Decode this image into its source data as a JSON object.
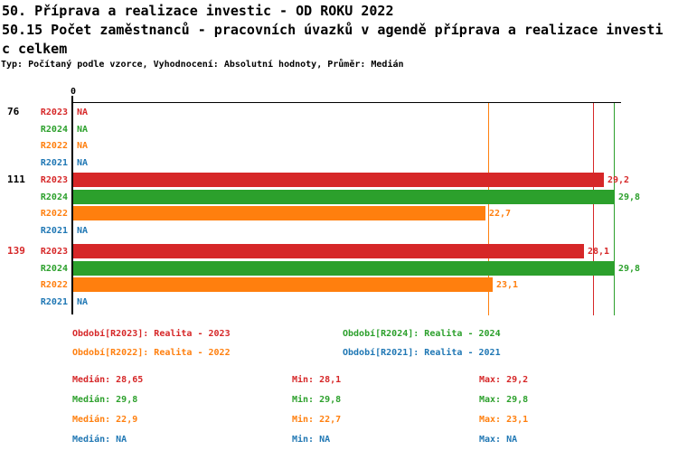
{
  "header": {
    "title_lines": [
      "50. Příprava a realizace investic - OD ROKU 2022",
      "50.15 Počet zaměstnanců - pracovních úvazků v agendě příprava a realizace investi",
      "c celkem"
    ],
    "subtitle": "Typ: Počítaný podle vzorce, Vyhodnocení: Absolutní hodnoty, Průměr: Medián"
  },
  "colors": {
    "R2023": "#d62728",
    "R2024": "#2ca02c",
    "R2022": "#ff7f0e",
    "R2021": "#1f77b4",
    "axis": "#000000",
    "highlight_group": "#d62728"
  },
  "chart_data": {
    "type": "bar",
    "orientation": "horizontal",
    "origin_tick_label": "0",
    "na_label": "NA",
    "xlim": [
      0,
      30.1
    ],
    "grid": false,
    "series_order": [
      "R2023",
      "R2024",
      "R2022",
      "R2021"
    ],
    "groups": [
      {
        "label": "76",
        "label_color": "#000000",
        "rows": [
          {
            "series": "R2023",
            "value": null,
            "display": "NA"
          },
          {
            "series": "R2024",
            "value": null,
            "display": "NA"
          },
          {
            "series": "R2022",
            "value": null,
            "display": "NA"
          },
          {
            "series": "R2021",
            "value": null,
            "display": "NA"
          }
        ]
      },
      {
        "label": "111",
        "label_color": "#000000",
        "rows": [
          {
            "series": "R2023",
            "value": 29.2,
            "display": "29,2"
          },
          {
            "series": "R2024",
            "value": 29.8,
            "display": "29,8"
          },
          {
            "series": "R2022",
            "value": 22.7,
            "display": "22,7"
          },
          {
            "series": "R2021",
            "value": null,
            "display": "NA"
          }
        ]
      },
      {
        "label": "139",
        "label_color": "#d62728",
        "rows": [
          {
            "series": "R2023",
            "value": 28.1,
            "display": "28,1"
          },
          {
            "series": "R2024",
            "value": 29.8,
            "display": "29,8"
          },
          {
            "series": "R2022",
            "value": 23.1,
            "display": "23,1"
          },
          {
            "series": "R2021",
            "value": null,
            "display": "NA"
          }
        ]
      }
    ],
    "median_lines": [
      {
        "series": "R2022",
        "value": 22.9
      },
      {
        "series": "R2023",
        "value": 28.65
      },
      {
        "series": "R2024",
        "value": 29.8
      }
    ]
  },
  "legend": {
    "items": [
      {
        "series": "R2023",
        "label": "Období[R2023]: Realita - 2023"
      },
      {
        "series": "R2024",
        "label": "Období[R2024]: Realita - 2024"
      },
      {
        "series": "R2022",
        "label": "Období[R2022]: Realita - 2022"
      },
      {
        "series": "R2021",
        "label": "Období[R2021]: Realita - 2021"
      }
    ]
  },
  "stats": {
    "labels": {
      "median": "Medián",
      "min": "Min",
      "max": "Max"
    },
    "rows": [
      {
        "series": "R2023",
        "median": "28,65",
        "min": "28,1",
        "max": "29,2"
      },
      {
        "series": "R2024",
        "median": "29,8",
        "min": "29,8",
        "max": "29,8"
      },
      {
        "series": "R2022",
        "median": "22,9",
        "min": "22,7",
        "max": "23,1"
      },
      {
        "series": "R2021",
        "median": "NA",
        "min": "NA",
        "max": "NA"
      }
    ]
  }
}
